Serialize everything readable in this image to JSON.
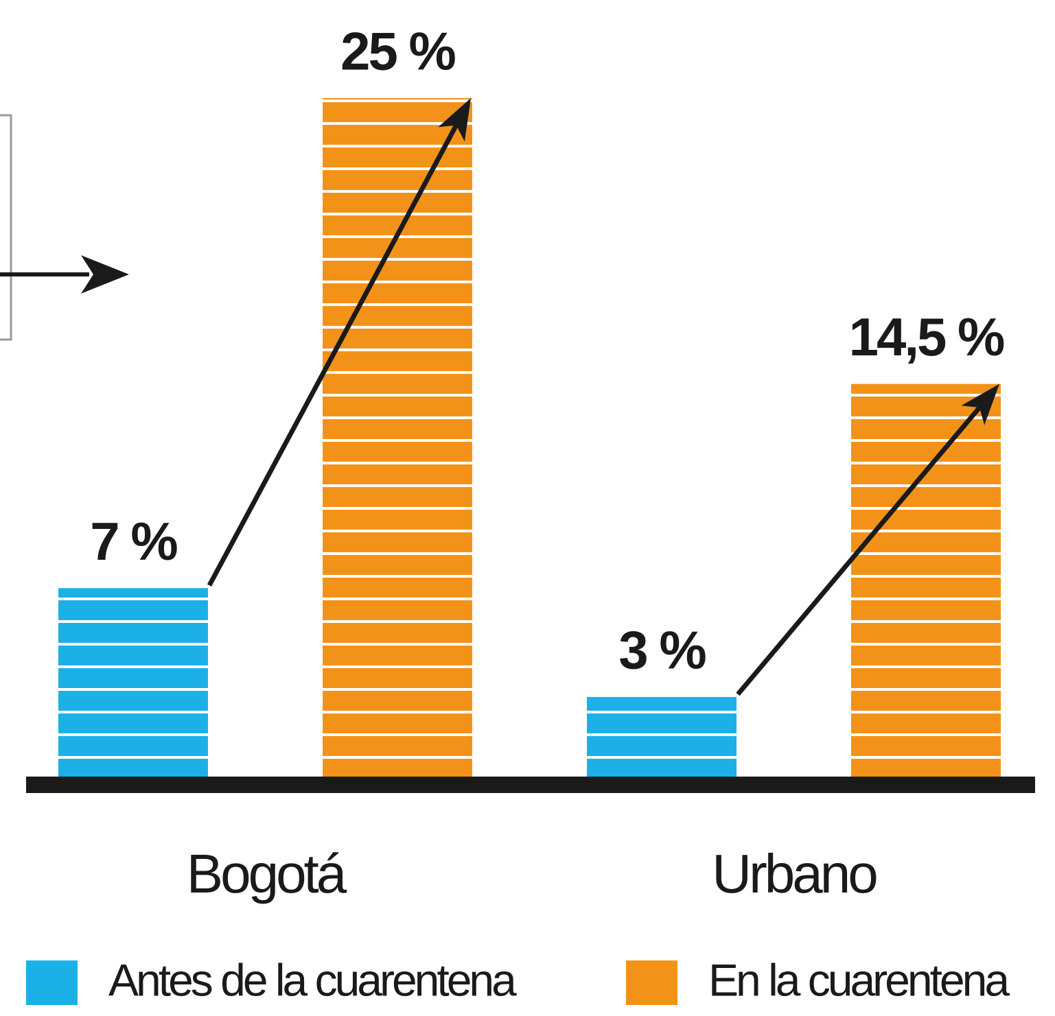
{
  "chart_data": {
    "type": "bar",
    "categories": [
      "Bogotá",
      "Urbano"
    ],
    "series": [
      {
        "name": "Antes de la cuarentena",
        "color": "#1bb1e7",
        "values": [
          7,
          3
        ],
        "value_labels": [
          "7 %",
          "3 %"
        ]
      },
      {
        "name": "En la cuarentena",
        "color": "#f39219",
        "values": [
          25,
          14.5
        ],
        "value_labels": [
          "25 %",
          "14,5 %"
        ]
      }
    ]
  }
}
